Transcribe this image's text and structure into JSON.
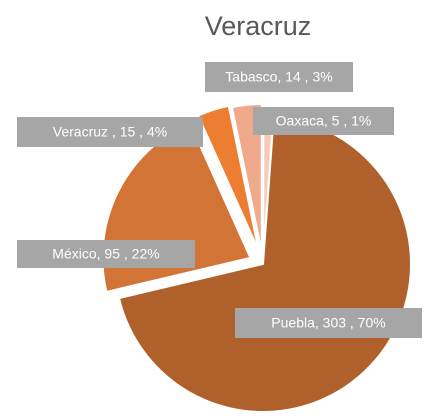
{
  "chart_data": {
    "type": "pie",
    "title": "Veracruz",
    "categories": [
      "Oaxaca",
      "Puebla",
      "México",
      "Veracruz",
      "Tabasco"
    ],
    "values": [
      5,
      303,
      95,
      15,
      14
    ],
    "value_labels": [
      "Oaxaca, 5 , 1%",
      "Puebla, 303 , 70%",
      "México, 95 , 22%",
      "Veracruz , 15 , 4%",
      "Tabasco, 14 , 3%"
    ],
    "colors": [
      "#f6cbb8",
      "#b0602a",
      "#d27436",
      "#ed7d31",
      "#f0a98a"
    ]
  }
}
